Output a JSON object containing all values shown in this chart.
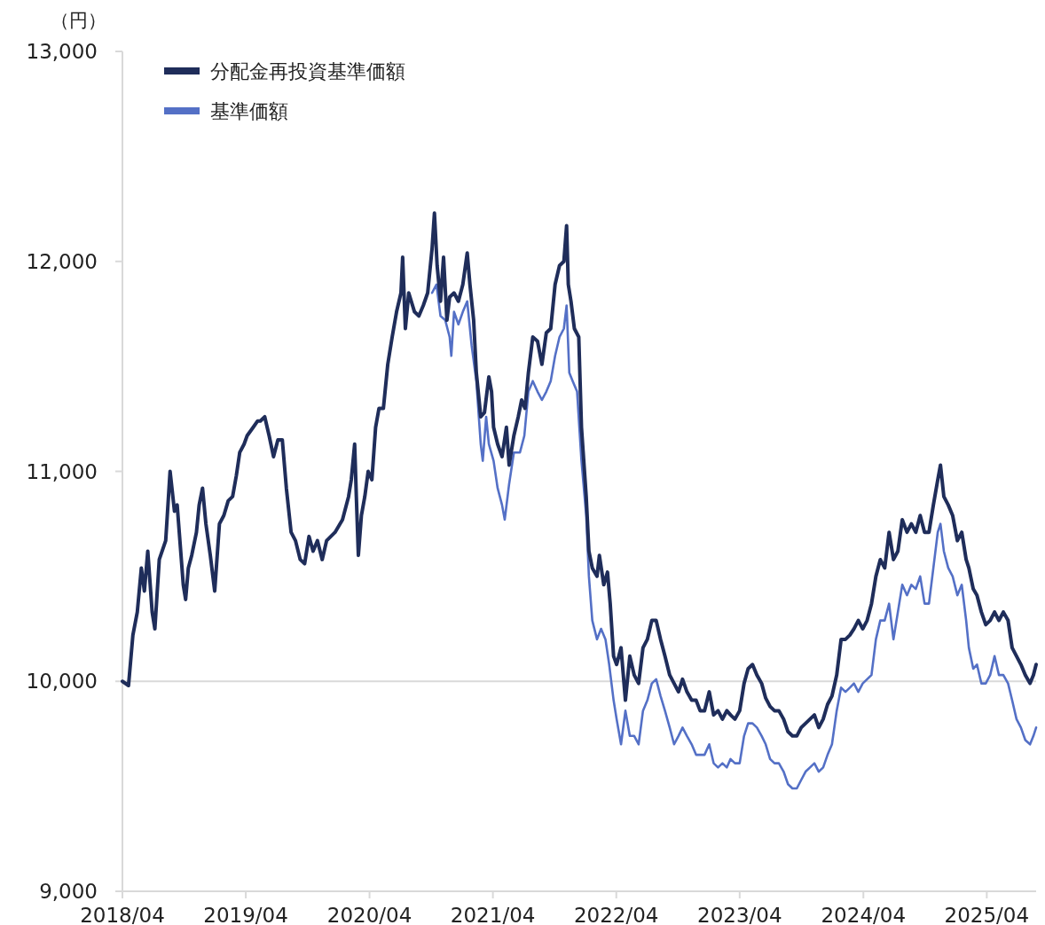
{
  "chart_data": {
    "type": "line",
    "ylabel": "（円）",
    "legend": "top left",
    "line_style": "solid",
    "xlim": [
      "2018-04-01",
      "2025-08-25"
    ],
    "xticks": [
      {
        "value": "2018-04-01",
        "label": "2018/04"
      },
      {
        "value": "2019-04-01",
        "label": "2019/04"
      },
      {
        "value": "2020-04-01",
        "label": "2020/04"
      },
      {
        "value": "2021-04-01",
        "label": "2021/04"
      },
      {
        "value": "2022-04-01",
        "label": "2022/04"
      },
      {
        "value": "2023-04-01",
        "label": "2023/04"
      },
      {
        "value": "2024-04-01",
        "label": "2024/04"
      },
      {
        "value": "2025-04-01",
        "label": "2025/04"
      }
    ],
    "ylim": [
      9000,
      13000
    ],
    "yticks": [
      {
        "value": 9000,
        "label": "9,000"
      },
      {
        "value": 10000,
        "label": "10,000"
      },
      {
        "value": 11000,
        "label": "11,000"
      },
      {
        "value": 12000,
        "label": "12,000"
      },
      {
        "value": 13000,
        "label": "13,000"
      }
    ],
    "ref_lines": [
      {
        "axis": "y",
        "value": 10000,
        "color": "#d9d9d9"
      }
    ],
    "series": [
      {
        "name": "分配金再投資基準価額",
        "color": "#1f2d5a",
        "x": [
          "2018-04-01",
          "2018-04-19",
          "2018-05-02",
          "2018-05-15",
          "2018-05-27",
          "2018-06-05",
          "2018-06-15",
          "2018-06-28",
          "2018-07-06",
          "2018-07-19",
          "2018-08-07",
          "2018-08-20",
          "2018-09-02",
          "2018-09-10",
          "2018-09-28",
          "2018-10-05",
          "2018-10-13",
          "2018-10-23",
          "2018-11-06",
          "2018-11-14",
          "2018-11-24",
          "2018-12-04",
          "2018-12-17",
          "2018-12-30",
          "2019-01-13",
          "2019-01-26",
          "2019-02-08",
          "2019-02-21",
          "2019-03-04",
          "2019-03-14",
          "2019-03-27",
          "2019-04-05",
          "2019-04-23",
          "2019-05-06",
          "2019-05-14",
          "2019-05-27",
          "2019-06-09",
          "2019-06-22",
          "2019-07-05",
          "2019-07-18",
          "2019-07-30",
          "2019-08-13",
          "2019-08-26",
          "2019-09-09",
          "2019-09-22",
          "2019-10-05",
          "2019-10-17",
          "2019-10-30",
          "2019-11-13",
          "2019-11-26",
          "2019-12-21",
          "2020-01-12",
          "2020-01-30",
          "2020-02-07",
          "2020-02-17",
          "2020-02-22",
          "2020-02-28",
          "2020-03-08",
          "2020-03-18",
          "2020-03-28",
          "2020-04-08",
          "2020-04-19",
          "2020-04-29",
          "2020-05-12",
          "2020-05-25",
          "2020-06-07",
          "2020-06-20",
          "2020-07-03",
          "2020-07-08",
          "2020-07-16",
          "2020-07-26",
          "2020-08-12",
          "2020-08-25",
          "2020-09-07",
          "2020-09-20",
          "2020-10-03",
          "2020-10-10",
          "2020-10-18",
          "2020-10-28",
          "2020-11-06",
          "2020-11-16",
          "2020-11-24",
          "2020-12-07",
          "2020-12-20",
          "2021-01-02",
          "2021-01-15",
          "2021-01-23",
          "2021-02-03",
          "2021-02-11",
          "2021-02-24",
          "2021-03-07",
          "2021-03-20",
          "2021-03-28",
          "2021-04-03",
          "2021-04-15",
          "2021-04-28",
          "2021-05-11",
          "2021-05-19",
          "2021-06-02",
          "2021-06-15",
          "2021-06-25",
          "2021-07-05",
          "2021-07-15",
          "2021-07-28",
          "2021-08-11",
          "2021-08-24",
          "2021-09-06",
          "2021-09-19",
          "2021-10-02",
          "2021-10-15",
          "2021-10-28",
          "2021-11-05",
          "2021-11-10",
          "2021-11-18",
          "2021-11-28",
          "2021-12-11",
          "2021-12-19",
          "2022-01-02",
          "2022-01-10",
          "2022-01-20",
          "2022-02-03",
          "2022-02-10",
          "2022-02-23",
          "2022-03-06",
          "2022-03-14",
          "2022-03-24",
          "2022-04-02",
          "2022-04-15",
          "2022-04-28",
          "2022-05-11",
          "2022-05-24",
          "2022-06-06",
          "2022-06-19",
          "2022-07-02",
          "2022-07-15",
          "2022-07-28",
          "2022-08-10",
          "2022-08-23",
          "2022-09-06",
          "2022-09-19",
          "2022-10-02",
          "2022-10-14",
          "2022-10-27",
          "2022-11-10",
          "2022-11-23",
          "2022-12-05",
          "2022-12-18",
          "2023-01-01",
          "2023-01-14",
          "2023-01-27",
          "2023-02-09",
          "2023-02-22",
          "2023-03-05",
          "2023-03-18",
          "2023-04-01",
          "2023-04-14",
          "2023-04-26",
          "2023-05-09",
          "2023-05-22",
          "2023-06-05",
          "2023-06-17",
          "2023-06-30",
          "2023-07-13",
          "2023-07-26",
          "2023-08-09",
          "2023-08-22",
          "2023-09-04",
          "2023-09-17",
          "2023-09-30",
          "2023-10-13",
          "2023-10-26",
          "2023-11-08",
          "2023-11-21",
          "2023-12-04",
          "2023-12-17",
          "2023-12-30",
          "2024-01-13",
          "2024-01-26",
          "2024-02-08",
          "2024-02-21",
          "2024-03-04",
          "2024-03-17",
          "2024-03-30",
          "2024-04-12",
          "2024-04-25",
          "2024-05-08",
          "2024-05-21",
          "2024-06-03",
          "2024-06-16",
          "2024-06-29",
          "2024-07-12",
          "2024-07-25",
          "2024-08-08",
          "2024-08-21",
          "2024-09-03",
          "2024-09-16",
          "2024-09-29",
          "2024-10-12",
          "2024-10-25",
          "2024-11-07",
          "2024-11-15",
          "2024-11-25",
          "2024-12-08",
          "2024-12-21",
          "2025-01-04",
          "2025-01-17",
          "2025-01-30",
          "2025-02-07",
          "2025-02-20",
          "2025-03-03",
          "2025-03-16",
          "2025-03-29",
          "2025-04-11",
          "2025-04-24",
          "2025-05-07",
          "2025-05-20",
          "2025-06-03",
          "2025-06-15",
          "2025-06-28",
          "2025-07-11",
          "2025-07-24",
          "2025-08-07",
          "2025-08-17",
          "2025-08-25"
        ],
        "values": [
          10000,
          9980,
          10220,
          10330,
          10540,
          10430,
          10620,
          10330,
          10250,
          10580,
          10670,
          11000,
          10810,
          10840,
          10460,
          10390,
          10540,
          10600,
          10710,
          10840,
          10920,
          10750,
          10600,
          10430,
          10750,
          10790,
          10860,
          10880,
          10980,
          11090,
          11130,
          11170,
          11210,
          11240,
          11240,
          11260,
          11170,
          11070,
          11150,
          11150,
          10920,
          10710,
          10670,
          10580,
          10560,
          10690,
          10620,
          10670,
          10580,
          10670,
          10710,
          10770,
          10880,
          10960,
          11130,
          10880,
          10600,
          10790,
          10880,
          11000,
          10960,
          11210,
          11300,
          11300,
          11510,
          11640,
          11760,
          11850,
          12020,
          11680,
          11850,
          11760,
          11740,
          11790,
          11850,
          12060,
          12230,
          11980,
          11810,
          12020,
          11720,
          11830,
          11850,
          11810,
          11890,
          12040,
          11890,
          11720,
          11470,
          11260,
          11280,
          11450,
          11380,
          11210,
          11130,
          11070,
          11210,
          11030,
          11170,
          11260,
          11340,
          11300,
          11470,
          11640,
          11620,
          11510,
          11660,
          11680,
          11890,
          11980,
          12000,
          12170,
          11890,
          11810,
          11680,
          11640,
          11210,
          10880,
          10620,
          10540,
          10500,
          10600,
          10460,
          10520,
          10370,
          10120,
          10080,
          10160,
          9910,
          10120,
          10030,
          9990,
          10160,
          10200,
          10290,
          10290,
          10200,
          10120,
          10030,
          9990,
          9950,
          10010,
          9950,
          9910,
          9910,
          9860,
          9860,
          9950,
          9840,
          9860,
          9820,
          9860,
          9840,
          9820,
          9860,
          9990,
          10060,
          10080,
          10030,
          9990,
          9920,
          9880,
          9860,
          9860,
          9820,
          9760,
          9740,
          9740,
          9780,
          9800,
          9820,
          9840,
          9780,
          9820,
          9890,
          9930,
          10030,
          10200,
          10200,
          10220,
          10250,
          10290,
          10250,
          10290,
          10370,
          10500,
          10580,
          10540,
          10710,
          10580,
          10620,
          10770,
          10710,
          10750,
          10710,
          10790,
          10710,
          10710,
          10840,
          10960,
          11030,
          10880,
          10840,
          10790,
          10670,
          10710,
          10580,
          10540,
          10440,
          10410,
          10330,
          10270,
          10290,
          10330,
          10290,
          10330,
          10290,
          10160,
          10120,
          10080,
          10030,
          9990,
          10030,
          10080
        ]
      },
      {
        "name": "基準価額",
        "color": "#5470c6",
        "x": [
          "2020-10-03",
          "2020-10-16",
          "2020-10-28",
          "2020-11-11",
          "2020-11-24",
          "2020-11-29",
          "2020-12-07",
          "2020-12-20",
          "2021-01-02",
          "2021-01-15",
          "2021-01-28",
          "2021-02-11",
          "2021-02-24",
          "2021-03-02",
          "2021-03-12",
          "2021-03-20",
          "2021-04-03",
          "2021-04-15",
          "2021-04-28",
          "2021-05-06",
          "2021-05-19",
          "2021-06-02",
          "2021-06-20",
          "2021-07-03",
          "2021-07-15",
          "2021-07-28",
          "2021-08-11",
          "2021-08-24",
          "2021-09-06",
          "2021-09-19",
          "2021-10-02",
          "2021-10-15",
          "2021-10-28",
          "2021-11-05",
          "2021-11-13",
          "2021-11-23",
          "2021-12-06",
          "2021-12-19",
          "2022-01-02",
          "2022-01-10",
          "2022-01-20",
          "2022-02-03",
          "2022-02-15",
          "2022-02-28",
          "2022-03-11",
          "2022-03-24",
          "2022-04-02",
          "2022-04-15",
          "2022-04-28",
          "2022-05-11",
          "2022-05-24",
          "2022-06-06",
          "2022-06-19",
          "2022-07-02",
          "2022-07-15",
          "2022-07-28",
          "2022-08-10",
          "2022-08-23",
          "2022-09-06",
          "2022-09-19",
          "2022-10-02",
          "2022-10-14",
          "2022-10-27",
          "2022-11-10",
          "2022-11-23",
          "2022-12-05",
          "2022-12-18",
          "2023-01-01",
          "2023-01-14",
          "2023-01-27",
          "2023-02-09",
          "2023-02-22",
          "2023-03-05",
          "2023-03-18",
          "2023-04-01",
          "2023-04-14",
          "2023-04-26",
          "2023-05-09",
          "2023-05-22",
          "2023-06-05",
          "2023-06-17",
          "2023-06-30",
          "2023-07-13",
          "2023-07-26",
          "2023-08-09",
          "2023-08-22",
          "2023-09-04",
          "2023-09-17",
          "2023-09-30",
          "2023-10-13",
          "2023-10-26",
          "2023-11-08",
          "2023-11-21",
          "2023-12-04",
          "2023-12-17",
          "2023-12-30",
          "2024-01-13",
          "2024-01-26",
          "2024-02-08",
          "2024-02-21",
          "2024-03-04",
          "2024-03-17",
          "2024-03-30",
          "2024-04-12",
          "2024-04-25",
          "2024-05-08",
          "2024-05-21",
          "2024-06-03",
          "2024-06-16",
          "2024-06-29",
          "2024-07-12",
          "2024-07-25",
          "2024-08-08",
          "2024-08-21",
          "2024-09-03",
          "2024-09-16",
          "2024-09-29",
          "2024-10-12",
          "2024-10-25",
          "2024-11-07",
          "2024-11-15",
          "2024-11-25",
          "2024-12-08",
          "2024-12-21",
          "2025-01-04",
          "2025-01-17",
          "2025-01-30",
          "2025-02-07",
          "2025-02-20",
          "2025-03-03",
          "2025-03-16",
          "2025-03-29",
          "2025-04-11",
          "2025-04-24",
          "2025-05-07",
          "2025-05-20",
          "2025-06-03",
          "2025-06-15",
          "2025-06-28",
          "2025-07-11",
          "2025-07-24",
          "2025-08-07",
          "2025-08-17",
          "2025-08-25"
        ],
        "values": [
          11850,
          11890,
          11740,
          11720,
          11640,
          11550,
          11760,
          11700,
          11760,
          11810,
          11600,
          11430,
          11130,
          11050,
          11260,
          11130,
          11050,
          10920,
          10840,
          10770,
          10940,
          11090,
          11090,
          11170,
          11380,
          11430,
          11380,
          11340,
          11380,
          11430,
          11550,
          11640,
          11680,
          11790,
          11470,
          11430,
          11380,
          11050,
          10790,
          10500,
          10290,
          10200,
          10250,
          10200,
          10080,
          9910,
          9820,
          9700,
          9860,
          9740,
          9740,
          9700,
          9860,
          9910,
          9990,
          10010,
          9930,
          9860,
          9780,
          9700,
          9740,
          9780,
          9740,
          9700,
          9650,
          9650,
          9650,
          9700,
          9610,
          9590,
          9610,
          9590,
          9630,
          9610,
          9610,
          9740,
          9800,
          9800,
          9780,
          9740,
          9700,
          9630,
          9610,
          9610,
          9570,
          9510,
          9490,
          9490,
          9530,
          9570,
          9590,
          9610,
          9570,
          9590,
          9650,
          9700,
          9860,
          9970,
          9950,
          9970,
          9990,
          9950,
          9990,
          10010,
          10030,
          10200,
          10290,
          10290,
          10370,
          10200,
          10330,
          10460,
          10410,
          10460,
          10440,
          10500,
          10370,
          10370,
          10540,
          10710,
          10750,
          10620,
          10540,
          10500,
          10410,
          10460,
          10290,
          10160,
          10060,
          10080,
          9990,
          9990,
          10030,
          10120,
          10030,
          10030,
          9990,
          9910,
          9820,
          9780,
          9720,
          9700,
          9740,
          9780
        ]
      }
    ]
  }
}
